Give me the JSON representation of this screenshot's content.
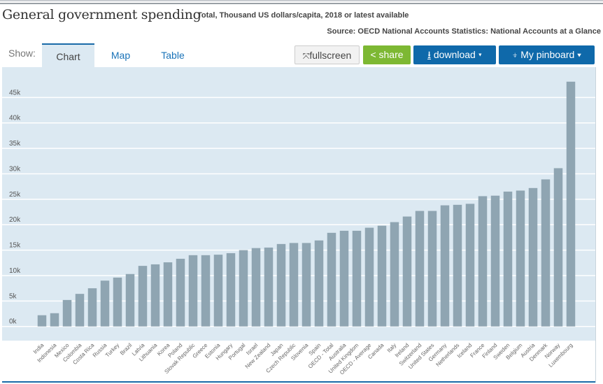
{
  "header": {
    "title": "General government spending",
    "subtitle": "Total, Thousand US dollars/capita, 2018 or latest available",
    "source": "Source: OECD National Accounts Statistics: National Accounts at a Glance"
  },
  "toolbar": {
    "show_label": "Show:",
    "tabs": [
      {
        "label": "Chart",
        "active": true
      },
      {
        "label": "Map"
      },
      {
        "label": "Table"
      }
    ],
    "fullscreen": "fullscreen",
    "share": "share",
    "download": "download ▾",
    "pinboard": "My pinboard ▾"
  },
  "colors": {
    "bar": "#8fa5b2",
    "plot_bg": "#dce9f2",
    "share": "#7db833",
    "primary": "#0f69aa"
  },
  "chart_data": {
    "type": "bar",
    "title": "General government spending",
    "ylim": [
      0,
      48
    ],
    "grid": true,
    "yticks": [
      0,
      5,
      10,
      15,
      20,
      25,
      30,
      35,
      40,
      45
    ],
    "ytick_labels": [
      "0k",
      "5k",
      "10k",
      "15k",
      "20k",
      "25k",
      "30k",
      "35k",
      "40k",
      "45k"
    ],
    "categories": [
      "India",
      "Indonesia",
      "Mexico",
      "Colombia",
      "Costa Rica",
      "Russia",
      "Turkey",
      "Brazil",
      "Latvia",
      "Lithuania",
      "Korea",
      "Poland",
      "Slovak Republic",
      "Greece",
      "Estonia",
      "Hungary",
      "Portugal",
      "Israel",
      "New Zealand",
      "Japan",
      "Czech Republic",
      "Slovenia",
      "Spain",
      "OECD - Total",
      "Australia",
      "United Kingdom",
      "OECD - Average",
      "Canada",
      "Italy",
      "Ireland",
      "Switzerland",
      "United States",
      "Germany",
      "Netherlands",
      "Iceland",
      "France",
      "Finland",
      "Sweden",
      "Belgium",
      "Austria",
      "Denmark",
      "Norway",
      "Luxembourg"
    ],
    "values": [
      2.2,
      2.6,
      5.2,
      6.4,
      7.5,
      9.0,
      9.6,
      10.3,
      11.9,
      12.2,
      12.6,
      13.3,
      14.0,
      14.0,
      14.1,
      14.4,
      15.0,
      15.4,
      15.5,
      16.2,
      16.4,
      16.4,
      16.9,
      18.4,
      18.8,
      18.8,
      19.4,
      19.8,
      20.5,
      21.6,
      22.7,
      22.7,
      23.8,
      23.9,
      24.1,
      25.6,
      25.7,
      26.5,
      26.7,
      27.2,
      28.9,
      31.1,
      48.1
    ]
  }
}
